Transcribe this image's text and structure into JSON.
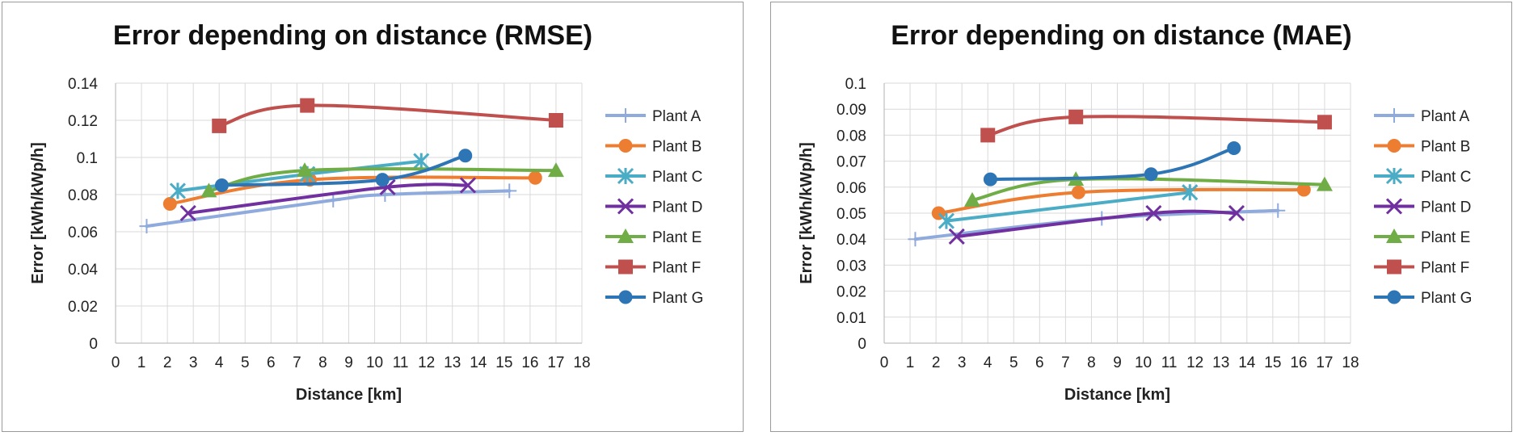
{
  "chart_data": [
    {
      "type": "line",
      "title": "Error depending on distance (RMSE)",
      "xlabel": "Distance [km]",
      "ylabel": "Error [kWh/kWp/h]",
      "xlim": [
        0,
        18
      ],
      "ylim": [
        0,
        0.14
      ],
      "xticks": [
        "0",
        "1",
        "2",
        "3",
        "4",
        "5",
        "6",
        "7",
        "8",
        "9",
        "10",
        "11",
        "12",
        "13",
        "14",
        "15",
        "16",
        "17",
        "18"
      ],
      "yticks": [
        "0",
        "0.02",
        "0.04",
        "0.06",
        "0.08",
        "0.1",
        "0.12",
        "0.14"
      ],
      "grid": true,
      "legend_position": "right",
      "series": [
        {
          "name": "Plant A",
          "color": "#8FAADC",
          "marker": "plus",
          "x": [
            1.2,
            8.4,
            10.4,
            15.2
          ],
          "y": [
            0.063,
            0.077,
            0.08,
            0.082
          ]
        },
        {
          "name": "Plant B",
          "color": "#ED7D31",
          "marker": "circle",
          "x": [
            2.1,
            7.5,
            16.2
          ],
          "y": [
            0.075,
            0.088,
            0.089
          ]
        },
        {
          "name": "Plant C",
          "color": "#4BACC6",
          "marker": "star",
          "x": [
            2.4,
            7.4,
            11.8
          ],
          "y": [
            0.082,
            0.091,
            0.098
          ]
        },
        {
          "name": "Plant D",
          "color": "#7030A0",
          "marker": "x",
          "x": [
            2.8,
            10.5,
            13.6
          ],
          "y": [
            0.07,
            0.084,
            0.085
          ]
        },
        {
          "name": "Plant E",
          "color": "#70AD47",
          "marker": "triangle",
          "x": [
            3.6,
            7.3,
            17.0
          ],
          "y": [
            0.082,
            0.093,
            0.093
          ]
        },
        {
          "name": "Plant F",
          "color": "#C0504D",
          "marker": "square",
          "x": [
            4.0,
            7.4,
            17.0
          ],
          "y": [
            0.117,
            0.128,
            0.12
          ]
        },
        {
          "name": "Plant G",
          "color": "#2E75B6",
          "marker": "circle",
          "x": [
            4.1,
            10.3,
            13.5
          ],
          "y": [
            0.085,
            0.088,
            0.101
          ]
        }
      ]
    },
    {
      "type": "line",
      "title": "Error depending on distance (MAE)",
      "xlabel": "Distance [km]",
      "ylabel": "Error [kWh/kWp/h]",
      "xlim": [
        0,
        18
      ],
      "ylim": [
        0,
        0.1
      ],
      "xticks": [
        "0",
        "1",
        "2",
        "3",
        "4",
        "5",
        "6",
        "7",
        "8",
        "9",
        "10",
        "11",
        "12",
        "13",
        "14",
        "15",
        "16",
        "17",
        "18"
      ],
      "yticks": [
        "0",
        "0.01",
        "0.02",
        "0.03",
        "0.04",
        "0.05",
        "0.06",
        "0.07",
        "0.08",
        "0.09",
        "0.1"
      ],
      "grid": true,
      "legend_position": "right",
      "series": [
        {
          "name": "Plant A",
          "color": "#8FAADC",
          "marker": "plus",
          "x": [
            1.2,
            8.4,
            15.2
          ],
          "y": [
            0.04,
            0.048,
            0.051
          ]
        },
        {
          "name": "Plant B",
          "color": "#ED7D31",
          "marker": "circle",
          "x": [
            2.1,
            7.5,
            16.2
          ],
          "y": [
            0.05,
            0.058,
            0.059
          ]
        },
        {
          "name": "Plant C",
          "color": "#4BACC6",
          "marker": "star",
          "x": [
            2.4,
            11.8
          ],
          "y": [
            0.047,
            0.058
          ]
        },
        {
          "name": "Plant D",
          "color": "#7030A0",
          "marker": "x",
          "x": [
            2.8,
            10.4,
            13.6
          ],
          "y": [
            0.041,
            0.05,
            0.05
          ]
        },
        {
          "name": "Plant E",
          "color": "#70AD47",
          "marker": "triangle",
          "x": [
            3.4,
            7.4,
            17.0
          ],
          "y": [
            0.055,
            0.063,
            0.061
          ]
        },
        {
          "name": "Plant F",
          "color": "#C0504D",
          "marker": "square",
          "x": [
            4.0,
            7.4,
            17.0
          ],
          "y": [
            0.08,
            0.087,
            0.085
          ]
        },
        {
          "name": "Plant G",
          "color": "#2E75B6",
          "marker": "circle",
          "x": [
            4.1,
            10.3,
            13.5
          ],
          "y": [
            0.063,
            0.065,
            0.075
          ]
        }
      ]
    }
  ]
}
